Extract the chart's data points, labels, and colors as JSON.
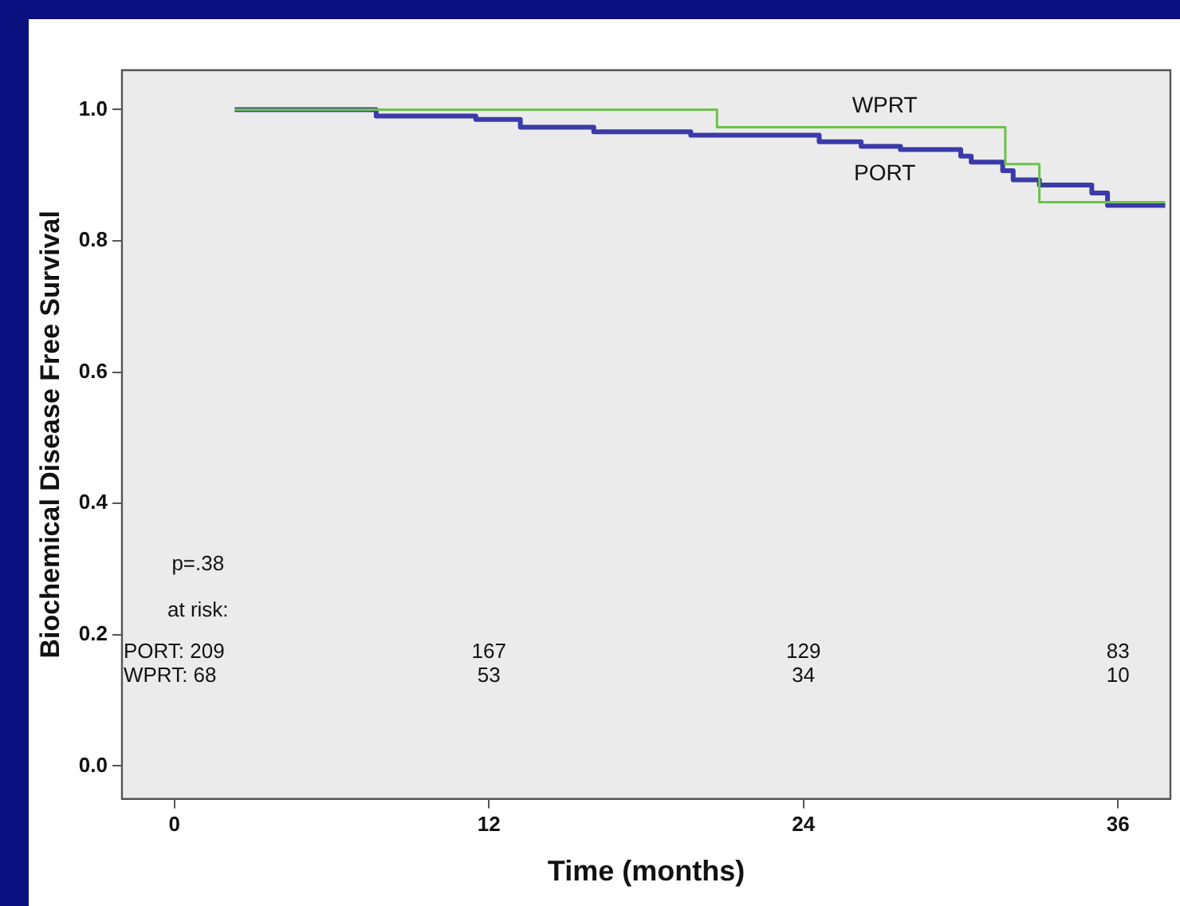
{
  "chart_data": {
    "type": "step",
    "xlabel": "Time (months)",
    "ylabel": "Biochemical Disease Free Survival",
    "xlim": [
      -2,
      38
    ],
    "ylim": [
      -0.05,
      1.06
    ],
    "xticks": [
      0,
      12,
      24,
      36
    ],
    "yticks": [
      {
        "value": 0,
        "label": "0.0"
      },
      {
        "value": 0.2,
        "label": "0.2"
      },
      {
        "value": 0.4,
        "label": "0.4"
      },
      {
        "value": 0.6,
        "label": "0.6"
      },
      {
        "value": 0.8,
        "label": "0.8"
      },
      {
        "value": 1,
        "label": "1.0"
      }
    ],
    "grid": false,
    "legend": false,
    "marker": "none",
    "line_style": "solid",
    "series": [
      {
        "name": "WPRT",
        "color": "#6cc24a",
        "x": [
          2.3,
          20.7,
          31.7,
          33.0,
          37.8
        ],
        "values": [
          1.0,
          0.973,
          0.917,
          0.859,
          0.859
        ]
      },
      {
        "name": "PORT",
        "color": "#3a3aa8",
        "x": [
          2.3,
          7.7,
          11.5,
          13.2,
          16.0,
          19.7,
          24.6,
          26.2,
          27.7,
          30.0,
          30.4,
          31.6,
          32.0,
          33.0,
          35.0,
          35.6,
          37.8
        ],
        "values": [
          1.0,
          0.99,
          0.985,
          0.973,
          0.966,
          0.961,
          0.951,
          0.944,
          0.939,
          0.929,
          0.92,
          0.907,
          0.893,
          0.885,
          0.873,
          0.854,
          0.854
        ]
      }
    ],
    "annotations": [
      "p=.38",
      "at risk:",
      "PORT: 209",
      "WPRT: 68",
      "167",
      "53",
      "129",
      "34",
      "83",
      "10"
    ]
  }
}
